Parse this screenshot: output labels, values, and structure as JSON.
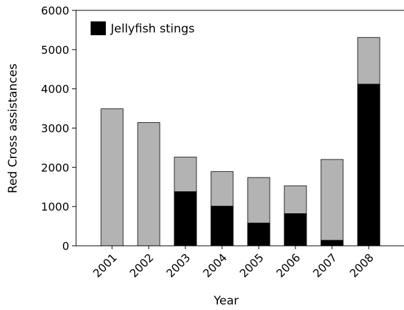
{
  "chart_data": {
    "type": "bar",
    "title": "",
    "xlabel": "Year",
    "ylabel": "Red Cross assistances",
    "categories": [
      "2001",
      "2002",
      "2003",
      "2004",
      "2005",
      "2006",
      "2007",
      "2008"
    ],
    "series": [
      {
        "name": "",
        "role": "total",
        "color": "#b3b3b3",
        "values": [
          3490,
          3140,
          2260,
          1890,
          1740,
          1530,
          2200,
          5310
        ]
      },
      {
        "name": "Jellyfish stings",
        "role": "subset",
        "color": "#000000",
        "values": [
          0,
          0,
          1380,
          1010,
          580,
          820,
          140,
          4120
        ]
      }
    ],
    "ylim": [
      0,
      6000
    ],
    "yticks": [
      "0",
      "1000",
      "2000",
      "3000",
      "4000",
      "5000",
      "6000"
    ],
    "grid": false,
    "legend": {
      "position": "top-left",
      "entries": [
        "Jellyfish stings"
      ]
    }
  }
}
